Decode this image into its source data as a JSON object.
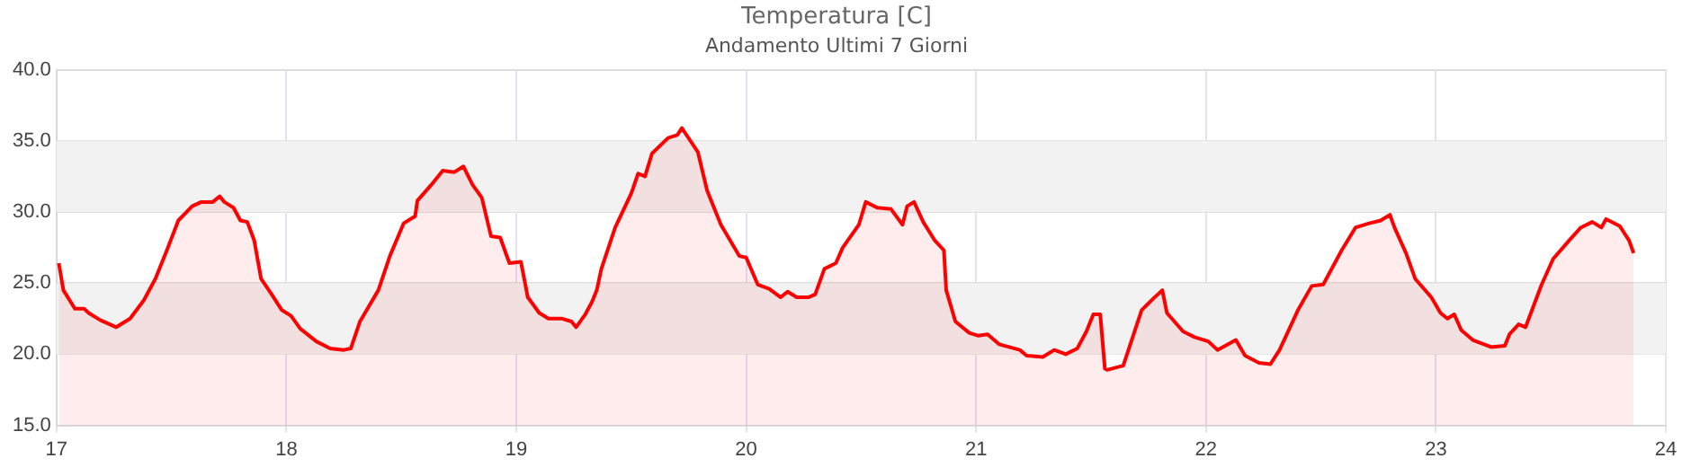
{
  "chart_data": {
    "type": "area",
    "title": "Temperatura [C]",
    "subtitle": "Andamento Ultimi 7 Giorni",
    "xlim": [
      17,
      24
    ],
    "xticks": [
      17,
      18,
      19,
      20,
      21,
      22,
      23,
      24
    ],
    "ylim": [
      15,
      40
    ],
    "yticks": [
      {
        "value": 15,
        "label": "15.0"
      },
      {
        "value": 20,
        "label": "20.0"
      },
      {
        "value": 25,
        "label": "25.0"
      },
      {
        "value": 30,
        "label": "30.0"
      },
      {
        "value": 35,
        "label": "35.0"
      },
      {
        "value": 40,
        "label": "40.0"
      }
    ],
    "grid": true,
    "legend": false,
    "marker": "none",
    "line_style": "solid",
    "bands": [
      {
        "axis": "y",
        "from": 20,
        "to": 25,
        "color": "#f2f2f2"
      },
      {
        "axis": "y",
        "from": 30,
        "to": 35,
        "color": "#f2f2f2"
      }
    ],
    "series": [
      {
        "color": "#ff0000",
        "x": [
          17.01,
          17.03,
          17.08,
          17.12,
          17.14,
          17.19,
          17.26,
          17.32,
          17.38,
          17.43,
          17.48,
          17.53,
          17.59,
          17.63,
          17.68,
          17.71,
          17.73,
          17.77,
          17.8,
          17.83,
          17.86,
          17.89,
          17.94,
          17.98,
          18.02,
          18.06,
          18.13,
          18.19,
          18.25,
          18.28,
          18.32,
          18.4,
          18.45,
          18.51,
          18.56,
          18.57,
          18.63,
          18.68,
          18.73,
          18.77,
          18.81,
          18.85,
          18.89,
          18.93,
          18.97,
          19.02,
          19.05,
          19.1,
          19.14,
          19.2,
          19.24,
          19.26,
          19.3,
          19.33,
          19.35,
          19.37,
          19.43,
          19.5,
          19.53,
          19.56,
          19.59,
          19.66,
          19.7,
          19.72,
          19.79,
          19.83,
          19.89,
          19.97,
          20.0,
          20.05,
          20.1,
          20.15,
          20.18,
          20.22,
          20.27,
          20.3,
          20.34,
          20.39,
          20.42,
          20.49,
          20.52,
          20.57,
          20.63,
          20.68,
          20.7,
          20.73,
          20.77,
          20.82,
          20.86,
          20.87,
          20.91,
          20.97,
          21.01,
          21.05,
          21.1,
          21.19,
          21.22,
          21.29,
          21.34,
          21.39,
          21.44,
          21.48,
          21.51,
          21.54,
          21.56,
          21.57,
          21.64,
          21.72,
          21.77,
          21.81,
          21.83,
          21.9,
          21.95,
          22.01,
          22.05,
          22.13,
          22.17,
          22.23,
          22.28,
          22.32,
          22.4,
          22.46,
          22.51,
          22.59,
          22.65,
          22.71,
          22.76,
          22.8,
          22.82,
          22.87,
          22.91,
          22.98,
          23.02,
          23.05,
          23.08,
          23.11,
          23.16,
          23.24,
          23.3,
          23.32,
          23.36,
          23.39,
          23.46,
          23.51,
          23.58,
          23.63,
          23.68,
          23.72,
          23.74,
          23.8,
          23.84,
          23.86
        ],
        "values": [
          26.4,
          24.5,
          23.2,
          23.2,
          22.9,
          22.4,
          21.9,
          22.5,
          23.8,
          25.3,
          27.3,
          29.4,
          30.4,
          30.7,
          30.7,
          31.1,
          30.7,
          30.3,
          29.4,
          29.3,
          28.0,
          25.3,
          24.1,
          23.1,
          22.7,
          21.8,
          20.9,
          20.4,
          20.3,
          20.4,
          22.3,
          24.5,
          26.9,
          29.2,
          29.7,
          30.8,
          31.9,
          32.9,
          32.8,
          33.2,
          31.9,
          31.0,
          28.3,
          28.2,
          26.4,
          26.5,
          24.0,
          22.9,
          22.5,
          22.5,
          22.3,
          21.9,
          22.8,
          23.7,
          24.5,
          26.0,
          28.9,
          31.3,
          32.7,
          32.5,
          34.1,
          35.2,
          35.4,
          35.9,
          34.2,
          31.5,
          29.1,
          26.9,
          26.8,
          24.9,
          24.6,
          24.0,
          24.4,
          24.0,
          24.0,
          24.2,
          26.0,
          26.4,
          27.5,
          29.1,
          30.7,
          30.3,
          30.2,
          29.1,
          30.4,
          30.7,
          29.3,
          28.0,
          27.3,
          24.5,
          22.3,
          21.5,
          21.3,
          21.4,
          20.7,
          20.3,
          19.9,
          19.8,
          20.3,
          20.0,
          20.4,
          21.6,
          22.8,
          22.8,
          19.0,
          18.9,
          19.2,
          23.1,
          23.9,
          24.5,
          22.9,
          21.6,
          21.2,
          20.9,
          20.3,
          21.0,
          19.9,
          19.4,
          19.3,
          20.3,
          23.1,
          24.8,
          24.9,
          27.3,
          28.9,
          29.2,
          29.4,
          29.8,
          28.9,
          27.1,
          25.3,
          24.0,
          22.9,
          22.5,
          22.8,
          21.7,
          21.0,
          20.5,
          20.6,
          21.4,
          22.1,
          21.9,
          24.9,
          26.7,
          28.0,
          28.9,
          29.3,
          28.9,
          29.5,
          29.0,
          28.0,
          27.1
        ]
      }
    ]
  }
}
